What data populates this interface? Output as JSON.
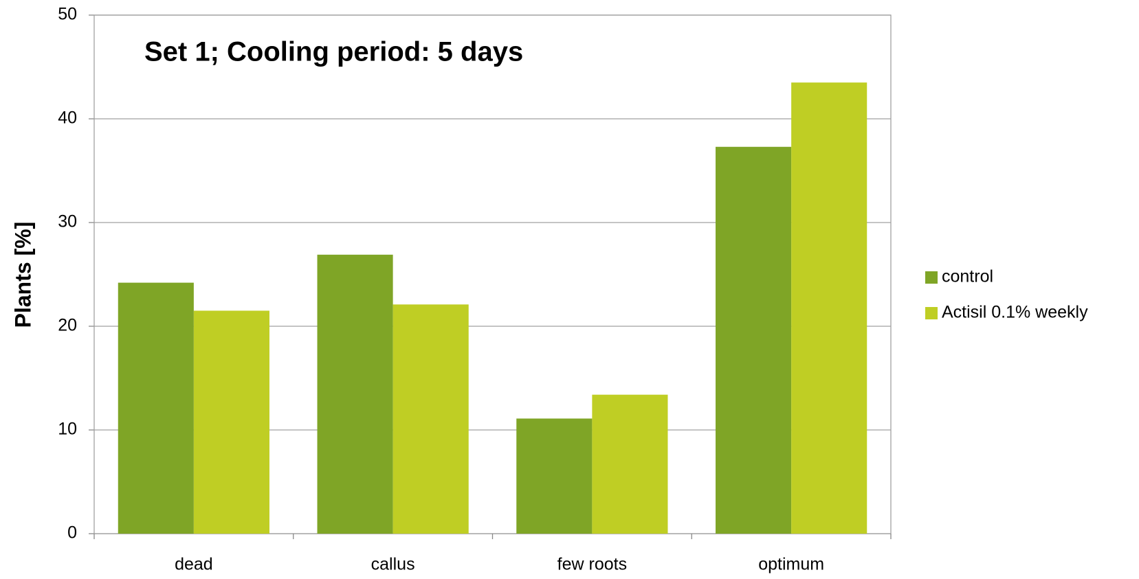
{
  "chart_data": {
    "type": "bar",
    "title": "Set 1; Cooling period: 5 days",
    "ylabel": "Plants [%]",
    "categories": [
      "dead",
      "callus",
      "few roots",
      "optimum"
    ],
    "series": [
      {
        "name": "control",
        "color": "#7fa526",
        "values": [
          24.2,
          26.9,
          11.1,
          37.3
        ]
      },
      {
        "name": "Actisil 0.1% weekly",
        "color": "#bfce24",
        "values": [
          21.5,
          22.1,
          13.4,
          43.5
        ]
      }
    ],
    "ylim": [
      0,
      50
    ],
    "yticks": [
      0,
      10,
      20,
      30,
      40,
      50
    ],
    "grid": true,
    "legend": "right"
  }
}
